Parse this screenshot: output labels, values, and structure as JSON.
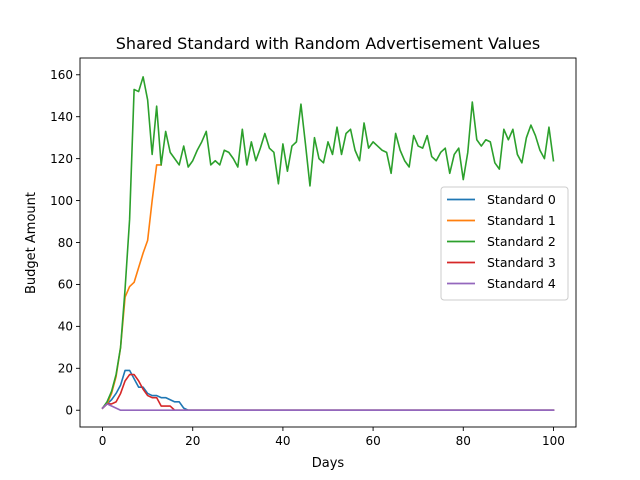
{
  "chart_data": {
    "type": "line",
    "title": "Shared Standard with Random Advertisement Values",
    "xlabel": "Days",
    "ylabel": "Budget Amount",
    "xlim": [
      -5,
      105
    ],
    "ylim": [
      -8,
      168
    ],
    "xticks": [
      0,
      20,
      40,
      60,
      80,
      100
    ],
    "yticks": [
      0,
      20,
      40,
      60,
      80,
      100,
      120,
      140,
      160
    ],
    "grid": false,
    "legend_position": "center-right",
    "series": [
      {
        "name": "Standard 0",
        "color": "#1f77b4",
        "x": [
          0,
          1,
          2,
          3,
          4,
          5,
          6,
          7,
          8,
          9,
          10,
          11,
          12,
          13,
          14,
          15,
          16,
          17,
          18,
          19,
          20,
          100
        ],
        "y": [
          1,
          3,
          5,
          8,
          12,
          19,
          19,
          15,
          11,
          11,
          8,
          7,
          7,
          6,
          6,
          5,
          4,
          4,
          1,
          0,
          0,
          0
        ]
      },
      {
        "name": "Standard 1",
        "color": "#ff7f0e",
        "x": [
          0,
          1,
          2,
          3,
          4,
          5,
          6,
          7,
          8,
          9,
          10,
          11,
          12,
          13
        ],
        "y": [
          1,
          3,
          8,
          16,
          30,
          54,
          59,
          61,
          68,
          75,
          81,
          100,
          117,
          117
        ]
      },
      {
        "name": "Standard 2",
        "color": "#2ca02c",
        "x": [
          0,
          1,
          2,
          3,
          4,
          5,
          6,
          7,
          8,
          9,
          10,
          11,
          12,
          13,
          14,
          15,
          16,
          17,
          18,
          19,
          20,
          21,
          22,
          23,
          24,
          25,
          26,
          27,
          28,
          29,
          30,
          31,
          32,
          33,
          34,
          35,
          36,
          37,
          38,
          39,
          40,
          41,
          42,
          43,
          44,
          45,
          46,
          47,
          48,
          49,
          50,
          51,
          52,
          53,
          54,
          55,
          56,
          57,
          58,
          59,
          60,
          61,
          62,
          63,
          64,
          65,
          66,
          67,
          68,
          69,
          70,
          71,
          72,
          73,
          74,
          75,
          76,
          77,
          78,
          79,
          80,
          81,
          82,
          83,
          84,
          85,
          86,
          87,
          88,
          89,
          90,
          91,
          92,
          93,
          94,
          95,
          96,
          97,
          98,
          99,
          100
        ],
        "y": [
          1,
          4,
          9,
          17,
          30,
          58,
          91,
          153,
          152,
          159,
          148,
          122,
          145,
          117,
          133,
          123,
          120,
          117,
          126,
          116,
          119,
          124,
          128,
          133,
          117,
          119,
          117,
          124,
          123,
          120,
          116,
          134,
          117,
          128,
          119,
          125,
          132,
          125,
          123,
          108,
          127,
          114,
          126,
          128,
          146,
          127,
          107,
          130,
          120,
          118,
          128,
          122,
          135,
          122,
          132,
          134,
          124,
          119,
          137,
          125,
          128,
          126,
          124,
          123,
          113,
          132,
          124,
          119,
          116,
          131,
          126,
          125,
          131,
          121,
          119,
          123,
          125,
          113,
          122,
          125,
          110,
          123,
          147,
          129,
          126,
          129,
          128,
          118,
          115,
          134,
          129,
          134,
          122,
          118,
          130,
          136,
          131,
          124,
          120,
          135,
          119
        ]
      },
      {
        "name": "Standard 3",
        "color": "#d62728",
        "x": [
          0,
          1,
          2,
          3,
          4,
          5,
          6,
          7,
          8,
          9,
          10,
          11,
          12,
          13,
          14,
          15,
          16,
          17,
          100
        ],
        "y": [
          1,
          3,
          3,
          4,
          8,
          14,
          17,
          17,
          14,
          10,
          7,
          6,
          6,
          2,
          2,
          2,
          0,
          0,
          0
        ]
      },
      {
        "name": "Standard 4",
        "color": "#9467bd",
        "x": [
          0,
          1,
          2,
          3,
          4,
          100
        ],
        "y": [
          1,
          3,
          2,
          1,
          0,
          0
        ]
      }
    ]
  }
}
